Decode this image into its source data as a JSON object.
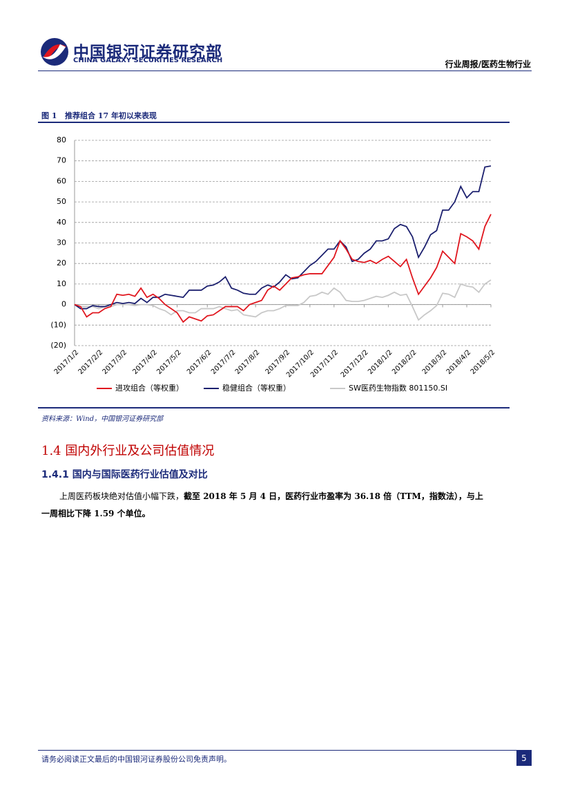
{
  "header": {
    "company": "中国银河证券研究部",
    "company_en": "CHINA GALAXY SECURITIES RESEARCH",
    "report_tag": "行业周报/医药生物行业"
  },
  "figure": {
    "caption": "图 1   推荐组合 17 年初以来表现",
    "source": "资料来源：Wind，中国银河证券研究部"
  },
  "chart_data": {
    "type": "line",
    "categories": [
      "2017/1/2",
      null,
      null,
      null,
      "2017/2/2",
      null,
      null,
      null,
      "2017/3/2",
      null,
      null,
      null,
      null,
      "2017/4/2",
      null,
      null,
      null,
      "2017/5/2",
      null,
      null,
      null,
      null,
      "2017/6/2",
      null,
      null,
      null,
      "2017/7/2",
      null,
      null,
      null,
      "2017/8/2",
      null,
      null,
      null,
      null,
      "2017/9/2",
      null,
      null,
      null,
      "2017/10/2",
      null,
      null,
      null,
      "2017/11/2",
      null,
      null,
      null,
      null,
      "2017/12/2",
      null,
      null,
      null,
      "2018/1/2",
      null,
      null,
      null,
      "2018/2/2",
      null,
      null,
      null,
      null,
      "2018/3/2",
      null,
      null,
      null,
      "2018/4/2",
      null,
      null,
      null,
      "2018/5/2"
    ],
    "series": [
      {
        "name": "进攻组合（等权重）",
        "color": "#e0161e",
        "values": [
          0,
          -1,
          -6,
          -4,
          -4,
          -2,
          -1,
          5,
          4.5,
          5,
          4,
          8,
          3.5,
          5,
          3,
          0,
          -2,
          -4,
          -8.5,
          -6,
          -7,
          -8,
          -5.5,
          -5,
          -3,
          -1,
          -1,
          -1,
          -3,
          0,
          1,
          2,
          7,
          9,
          7,
          10,
          13,
          13.5,
          14.5,
          15,
          15,
          15,
          19,
          23,
          31,
          27,
          22,
          21,
          20.5,
          21.5,
          20,
          22,
          23.5,
          21,
          18.5,
          22,
          13,
          5,
          9,
          13,
          18,
          26,
          23,
          20,
          34.5,
          33,
          31,
          27,
          38,
          44
        ]
      },
      {
        "name": "稳健组合（等权重）",
        "color": "#1b1f6e",
        "values": [
          0,
          -2,
          -2,
          -0.5,
          -1,
          -1,
          0,
          1,
          0.5,
          1,
          0.5,
          3,
          1,
          3.5,
          3.5,
          5,
          4.5,
          4,
          3.5,
          7,
          7,
          7,
          9,
          9.5,
          11,
          13.5,
          8,
          7,
          5.5,
          5,
          5,
          8,
          9.5,
          8.5,
          11,
          14.5,
          12.5,
          13,
          16,
          19,
          21,
          24,
          27,
          27,
          31,
          28,
          21,
          22,
          25,
          27,
          31,
          31,
          32,
          37,
          39,
          38,
          33,
          23,
          28,
          34,
          36,
          46,
          46,
          50,
          57.5,
          52,
          55,
          55,
          67,
          67.5
        ]
      },
      {
        "name": "SW医药生物指数 801150.SI",
        "color": "#c8c8c8",
        "values": [
          0,
          -1,
          -1,
          -1,
          -2,
          -1,
          -1,
          0,
          0,
          0,
          -0.5,
          0,
          0,
          -0.5,
          -2,
          -3,
          -5,
          -3,
          -3,
          -4,
          -4,
          -2,
          -2,
          -2,
          -1,
          -2,
          -3,
          -2.5,
          -5,
          -5.5,
          -6,
          -4,
          -3,
          -3,
          -2,
          -0.5,
          -0.5,
          -0.5,
          1,
          4,
          4.5,
          6,
          5,
          8,
          6,
          2,
          1.5,
          1.5,
          2,
          3,
          4,
          3.5,
          4.5,
          6,
          4.5,
          5,
          -1,
          -7.5,
          -5,
          -3,
          -0.5,
          5.5,
          5,
          3.5,
          10,
          9,
          8.5,
          6,
          10,
          12
        ]
      }
    ],
    "ylim": [
      -20,
      80
    ],
    "yticks": [
      {
        "value": -20,
        "label": "(20)"
      },
      {
        "value": -10,
        "label": "(10)"
      },
      0,
      10,
      20,
      30,
      40,
      50,
      60,
      70,
      80
    ],
    "grid": true,
    "legend": "bottom"
  },
  "section": {
    "heading": "1.4 国内外行业及公司估值情况",
    "subheading": "1.4.1 国内与国际医药行业估值及对比",
    "paragraph": [
      "上周医药板块绝对估值小幅下跌，",
      "截至 2018 年 5 月 4 日，医药行业市盈率为 36.18 倍（TTM，指数法），与上一周相比下降 1.59 个单位。"
    ]
  },
  "footer": {
    "disclaimer": "请务必阅读正文最后的中国银河证券股份公司免责声明。",
    "page": "5"
  }
}
